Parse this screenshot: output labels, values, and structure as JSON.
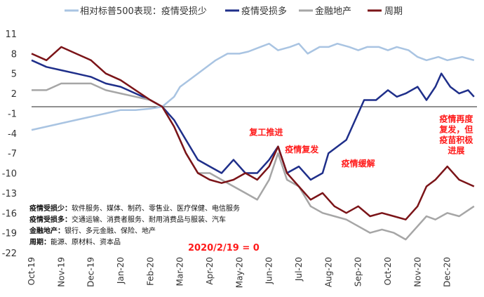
{
  "chart_data": {
    "type": "line",
    "title": "",
    "xlabel": "",
    "ylabel": "",
    "ylim": [
      -22,
      11
    ],
    "yticks": [
      11,
      8,
      5,
      2,
      -1,
      -4,
      -7,
      -10,
      -13,
      -16,
      -19,
      -22
    ],
    "months": [
      "Oct-19",
      "Nov-19",
      "Dec-19",
      "Jan-20",
      "Feb-20",
      "Mar-20",
      "Apr-20",
      "May-20",
      "Jun-20",
      "Jul-20",
      "Aug-20",
      "Sep-20",
      "Oct-20",
      "Nov-20",
      "Dec-20"
    ],
    "legend_title": "相对标普500表现：",
    "zero_note": "2020/2/19 = 0",
    "series": [
      {
        "name": "疫情受损少",
        "color": "#a9c4e2",
        "points": [
          [
            0,
            -3.5
          ],
          [
            0.5,
            -3
          ],
          [
            1,
            -2.5
          ],
          [
            1.5,
            -2
          ],
          [
            2,
            -1.5
          ],
          [
            2.5,
            -1
          ],
          [
            3,
            -0.5
          ],
          [
            3.5,
            -0.5
          ],
          [
            4,
            -0.3
          ],
          [
            4.4,
            0
          ],
          [
            4.8,
            1.5
          ],
          [
            5,
            3
          ],
          [
            5.3,
            4
          ],
          [
            5.6,
            5
          ],
          [
            5.9,
            6
          ],
          [
            6.2,
            7
          ],
          [
            6.6,
            8
          ],
          [
            7,
            8
          ],
          [
            7.3,
            8.3
          ],
          [
            7.7,
            9
          ],
          [
            8,
            9.5
          ],
          [
            8.3,
            8.5
          ],
          [
            8.7,
            9
          ],
          [
            9,
            9.5
          ],
          [
            9.3,
            8
          ],
          [
            9.7,
            9
          ],
          [
            10,
            9
          ],
          [
            10.3,
            9.5
          ],
          [
            10.7,
            9
          ],
          [
            11,
            8.5
          ],
          [
            11.3,
            9
          ],
          [
            11.7,
            9
          ],
          [
            12,
            8.5
          ],
          [
            12.3,
            9
          ],
          [
            12.7,
            8.5
          ],
          [
            13,
            7.5
          ],
          [
            13.3,
            7
          ],
          [
            13.7,
            7.5
          ],
          [
            14,
            7
          ],
          [
            14.5,
            7.5
          ],
          [
            14.9,
            7
          ]
        ]
      },
      {
        "name": "疫情受损多",
        "color": "#1f2f8a",
        "points": [
          [
            0,
            7
          ],
          [
            0.5,
            6
          ],
          [
            1,
            5.5
          ],
          [
            1.5,
            5
          ],
          [
            2,
            4.5
          ],
          [
            2.5,
            3.5
          ],
          [
            3,
            3
          ],
          [
            3.5,
            2
          ],
          [
            4,
            1
          ],
          [
            4.4,
            0
          ],
          [
            4.8,
            -2
          ],
          [
            5.2,
            -5
          ],
          [
            5.6,
            -8
          ],
          [
            6,
            -9
          ],
          [
            6.4,
            -10
          ],
          [
            6.8,
            -8
          ],
          [
            7.2,
            -10
          ],
          [
            7.6,
            -10
          ],
          [
            8,
            -8
          ],
          [
            8.3,
            -6
          ],
          [
            8.6,
            -10
          ],
          [
            9,
            -9
          ],
          [
            9.4,
            -11
          ],
          [
            9.8,
            -10
          ],
          [
            10,
            -7
          ],
          [
            10.3,
            -6
          ],
          [
            10.6,
            -5
          ],
          [
            10.9,
            -2
          ],
          [
            11.2,
            1
          ],
          [
            11.6,
            1
          ],
          [
            12,
            2.5
          ],
          [
            12.3,
            1.5
          ],
          [
            12.6,
            2
          ],
          [
            13,
            3
          ],
          [
            13.3,
            1
          ],
          [
            13.6,
            3
          ],
          [
            13.8,
            5
          ],
          [
            14.1,
            3
          ],
          [
            14.4,
            2
          ],
          [
            14.7,
            2.5
          ],
          [
            14.9,
            1.5
          ]
        ]
      },
      {
        "name": "金融地产",
        "color": "#a6a6a6",
        "points": [
          [
            0,
            2.5
          ],
          [
            0.5,
            2.5
          ],
          [
            1,
            3.5
          ],
          [
            1.5,
            3.5
          ],
          [
            2,
            3.5
          ],
          [
            2.5,
            2.5
          ],
          [
            3,
            2
          ],
          [
            3.5,
            1.5
          ],
          [
            4,
            1
          ],
          [
            4.4,
            0
          ],
          [
            4.8,
            -3
          ],
          [
            5.2,
            -7
          ],
          [
            5.6,
            -10
          ],
          [
            6,
            -10
          ],
          [
            6.4,
            -11
          ],
          [
            6.8,
            -12
          ],
          [
            7.2,
            -13
          ],
          [
            7.6,
            -14
          ],
          [
            8,
            -11
          ],
          [
            8.3,
            -7
          ],
          [
            8.6,
            -11
          ],
          [
            9,
            -12
          ],
          [
            9.4,
            -15
          ],
          [
            9.8,
            -16
          ],
          [
            10.2,
            -16.5
          ],
          [
            10.6,
            -17
          ],
          [
            11,
            -18
          ],
          [
            11.4,
            -19
          ],
          [
            11.8,
            -18.5
          ],
          [
            12.2,
            -19
          ],
          [
            12.6,
            -20
          ],
          [
            13,
            -18
          ],
          [
            13.3,
            -16.5
          ],
          [
            13.6,
            -17
          ],
          [
            14,
            -16
          ],
          [
            14.4,
            -16.5
          ],
          [
            14.9,
            -15
          ]
        ]
      },
      {
        "name": "周期",
        "color": "#7b1418",
        "points": [
          [
            0,
            8
          ],
          [
            0.5,
            7
          ],
          [
            1,
            9
          ],
          [
            1.5,
            8
          ],
          [
            2,
            7
          ],
          [
            2.5,
            5
          ],
          [
            3,
            4
          ],
          [
            3.5,
            2.5
          ],
          [
            4,
            1
          ],
          [
            4.4,
            0
          ],
          [
            4.8,
            -3
          ],
          [
            5.2,
            -7
          ],
          [
            5.6,
            -10
          ],
          [
            6,
            -11
          ],
          [
            6.4,
            -11.5
          ],
          [
            6.8,
            -11
          ],
          [
            7.2,
            -10
          ],
          [
            7.6,
            -11
          ],
          [
            8,
            -9
          ],
          [
            8.3,
            -6
          ],
          [
            8.6,
            -10
          ],
          [
            9,
            -12
          ],
          [
            9.4,
            -14
          ],
          [
            9.8,
            -13
          ],
          [
            10.2,
            -15
          ],
          [
            10.6,
            -16
          ],
          [
            11,
            -15
          ],
          [
            11.4,
            -16.5
          ],
          [
            11.8,
            -16
          ],
          [
            12.2,
            -16.5
          ],
          [
            12.6,
            -17
          ],
          [
            13,
            -15
          ],
          [
            13.3,
            -12
          ],
          [
            13.6,
            -11
          ],
          [
            14,
            -9
          ],
          [
            14.4,
            -11
          ],
          [
            14.9,
            -12
          ]
        ]
      }
    ],
    "annotations": [
      {
        "text": "复工推进",
        "x": 7.9,
        "y": -4.3
      },
      {
        "text": "疫情复发",
        "x": 9.1,
        "y": -6.9
      },
      {
        "text": "疫情缓解",
        "x": 11.0,
        "y": -9.0
      },
      {
        "lines": [
          "疫情再度",
          "复发，但",
          "疫苗积极",
          "进展"
        ],
        "x": 14.3,
        "y": -2.3
      }
    ],
    "category_notes": [
      {
        "label": "疫情受损少：",
        "text": "软件服务、媒体、制药、零售业、医疗保健、电信服务"
      },
      {
        "label": "疫情受损多：",
        "text": "交通运输、消费者服务、耐用消费品与服装、汽车"
      },
      {
        "label": "金融地产：",
        "text": "银行、多元金融、保险、地产"
      },
      {
        "label": "周期：",
        "text": "能源、原材料、资本品"
      }
    ]
  }
}
